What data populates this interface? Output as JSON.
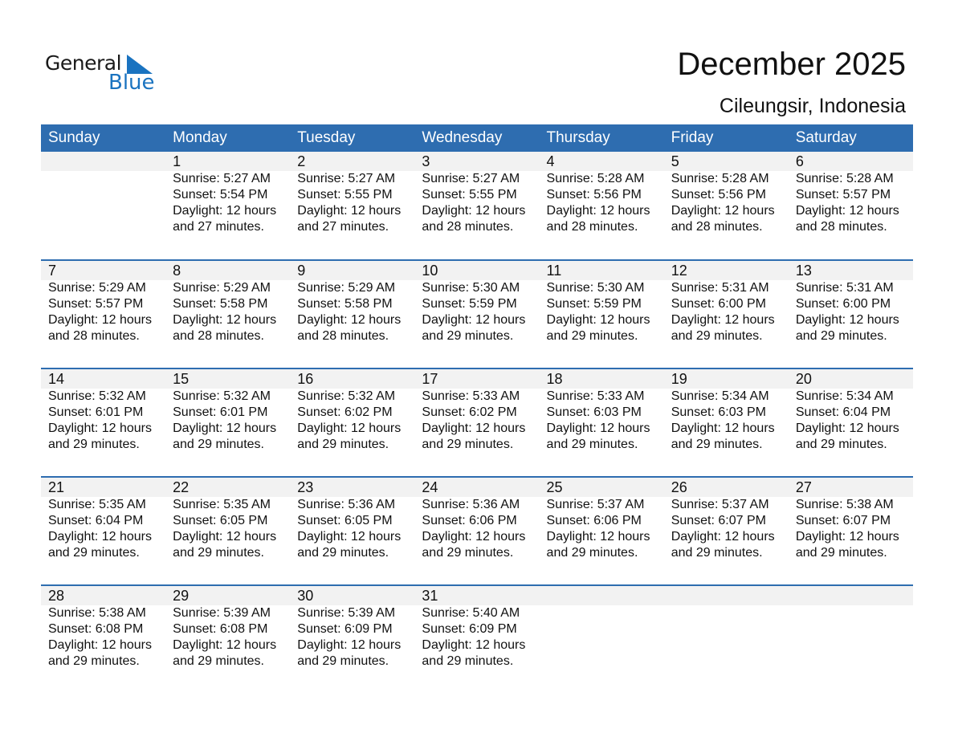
{
  "logo": {
    "line1": "General",
    "line2": "Blue",
    "color": "#1a73c0"
  },
  "title": "December 2025",
  "location": "Cileungsir, Indonesia",
  "colors": {
    "header": "#2e6db0",
    "band": "#f2f2f2"
  },
  "weekdays": [
    "Sunday",
    "Monday",
    "Tuesday",
    "Wednesday",
    "Thursday",
    "Friday",
    "Saturday"
  ],
  "weeks": [
    [
      null,
      {
        "day": "1",
        "sunrise": "Sunrise: 5:27 AM",
        "sunset": "Sunset: 5:54 PM",
        "daylight": "Daylight: 12 hours",
        "minutes": "and 27 minutes."
      },
      {
        "day": "2",
        "sunrise": "Sunrise: 5:27 AM",
        "sunset": "Sunset: 5:55 PM",
        "daylight": "Daylight: 12 hours",
        "minutes": "and 27 minutes."
      },
      {
        "day": "3",
        "sunrise": "Sunrise: 5:27 AM",
        "sunset": "Sunset: 5:55 PM",
        "daylight": "Daylight: 12 hours",
        "minutes": "and 28 minutes."
      },
      {
        "day": "4",
        "sunrise": "Sunrise: 5:28 AM",
        "sunset": "Sunset: 5:56 PM",
        "daylight": "Daylight: 12 hours",
        "minutes": "and 28 minutes."
      },
      {
        "day": "5",
        "sunrise": "Sunrise: 5:28 AM",
        "sunset": "Sunset: 5:56 PM",
        "daylight": "Daylight: 12 hours",
        "minutes": "and 28 minutes."
      },
      {
        "day": "6",
        "sunrise": "Sunrise: 5:28 AM",
        "sunset": "Sunset: 5:57 PM",
        "daylight": "Daylight: 12 hours",
        "minutes": "and 28 minutes."
      }
    ],
    [
      {
        "day": "7",
        "sunrise": "Sunrise: 5:29 AM",
        "sunset": "Sunset: 5:57 PM",
        "daylight": "Daylight: 12 hours",
        "minutes": "and 28 minutes."
      },
      {
        "day": "8",
        "sunrise": "Sunrise: 5:29 AM",
        "sunset": "Sunset: 5:58 PM",
        "daylight": "Daylight: 12 hours",
        "minutes": "and 28 minutes."
      },
      {
        "day": "9",
        "sunrise": "Sunrise: 5:29 AM",
        "sunset": "Sunset: 5:58 PM",
        "daylight": "Daylight: 12 hours",
        "minutes": "and 28 minutes."
      },
      {
        "day": "10",
        "sunrise": "Sunrise: 5:30 AM",
        "sunset": "Sunset: 5:59 PM",
        "daylight": "Daylight: 12 hours",
        "minutes": "and 29 minutes."
      },
      {
        "day": "11",
        "sunrise": "Sunrise: 5:30 AM",
        "sunset": "Sunset: 5:59 PM",
        "daylight": "Daylight: 12 hours",
        "minutes": "and 29 minutes."
      },
      {
        "day": "12",
        "sunrise": "Sunrise: 5:31 AM",
        "sunset": "Sunset: 6:00 PM",
        "daylight": "Daylight: 12 hours",
        "minutes": "and 29 minutes."
      },
      {
        "day": "13",
        "sunrise": "Sunrise: 5:31 AM",
        "sunset": "Sunset: 6:00 PM",
        "daylight": "Daylight: 12 hours",
        "minutes": "and 29 minutes."
      }
    ],
    [
      {
        "day": "14",
        "sunrise": "Sunrise: 5:32 AM",
        "sunset": "Sunset: 6:01 PM",
        "daylight": "Daylight: 12 hours",
        "minutes": "and 29 minutes."
      },
      {
        "day": "15",
        "sunrise": "Sunrise: 5:32 AM",
        "sunset": "Sunset: 6:01 PM",
        "daylight": "Daylight: 12 hours",
        "minutes": "and 29 minutes."
      },
      {
        "day": "16",
        "sunrise": "Sunrise: 5:32 AM",
        "sunset": "Sunset: 6:02 PM",
        "daylight": "Daylight: 12 hours",
        "minutes": "and 29 minutes."
      },
      {
        "day": "17",
        "sunrise": "Sunrise: 5:33 AM",
        "sunset": "Sunset: 6:02 PM",
        "daylight": "Daylight: 12 hours",
        "minutes": "and 29 minutes."
      },
      {
        "day": "18",
        "sunrise": "Sunrise: 5:33 AM",
        "sunset": "Sunset: 6:03 PM",
        "daylight": "Daylight: 12 hours",
        "minutes": "and 29 minutes."
      },
      {
        "day": "19",
        "sunrise": "Sunrise: 5:34 AM",
        "sunset": "Sunset: 6:03 PM",
        "daylight": "Daylight: 12 hours",
        "minutes": "and 29 minutes."
      },
      {
        "day": "20",
        "sunrise": "Sunrise: 5:34 AM",
        "sunset": "Sunset: 6:04 PM",
        "daylight": "Daylight: 12 hours",
        "minutes": "and 29 minutes."
      }
    ],
    [
      {
        "day": "21",
        "sunrise": "Sunrise: 5:35 AM",
        "sunset": "Sunset: 6:04 PM",
        "daylight": "Daylight: 12 hours",
        "minutes": "and 29 minutes."
      },
      {
        "day": "22",
        "sunrise": "Sunrise: 5:35 AM",
        "sunset": "Sunset: 6:05 PM",
        "daylight": "Daylight: 12 hours",
        "minutes": "and 29 minutes."
      },
      {
        "day": "23",
        "sunrise": "Sunrise: 5:36 AM",
        "sunset": "Sunset: 6:05 PM",
        "daylight": "Daylight: 12 hours",
        "minutes": "and 29 minutes."
      },
      {
        "day": "24",
        "sunrise": "Sunrise: 5:36 AM",
        "sunset": "Sunset: 6:06 PM",
        "daylight": "Daylight: 12 hours",
        "minutes": "and 29 minutes."
      },
      {
        "day": "25",
        "sunrise": "Sunrise: 5:37 AM",
        "sunset": "Sunset: 6:06 PM",
        "daylight": "Daylight: 12 hours",
        "minutes": "and 29 minutes."
      },
      {
        "day": "26",
        "sunrise": "Sunrise: 5:37 AM",
        "sunset": "Sunset: 6:07 PM",
        "daylight": "Daylight: 12 hours",
        "minutes": "and 29 minutes."
      },
      {
        "day": "27",
        "sunrise": "Sunrise: 5:38 AM",
        "sunset": "Sunset: 6:07 PM",
        "daylight": "Daylight: 12 hours",
        "minutes": "and 29 minutes."
      }
    ],
    [
      {
        "day": "28",
        "sunrise": "Sunrise: 5:38 AM",
        "sunset": "Sunset: 6:08 PM",
        "daylight": "Daylight: 12 hours",
        "minutes": "and 29 minutes."
      },
      {
        "day": "29",
        "sunrise": "Sunrise: 5:39 AM",
        "sunset": "Sunset: 6:08 PM",
        "daylight": "Daylight: 12 hours",
        "minutes": "and 29 minutes."
      },
      {
        "day": "30",
        "sunrise": "Sunrise: 5:39 AM",
        "sunset": "Sunset: 6:09 PM",
        "daylight": "Daylight: 12 hours",
        "minutes": "and 29 minutes."
      },
      {
        "day": "31",
        "sunrise": "Sunrise: 5:40 AM",
        "sunset": "Sunset: 6:09 PM",
        "daylight": "Daylight: 12 hours",
        "minutes": "and 29 minutes."
      },
      null,
      null,
      null
    ]
  ]
}
